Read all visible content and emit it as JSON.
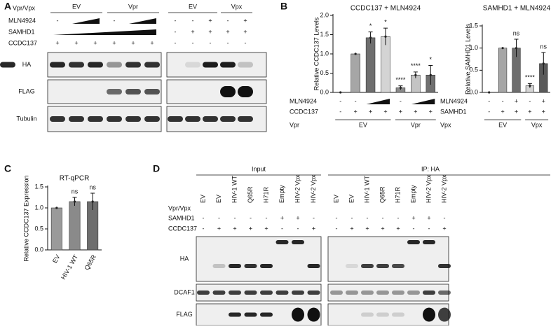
{
  "panel_labels": [
    "A",
    "B",
    "C",
    "D"
  ],
  "panel_a": {
    "header": "Vpr/Vpx",
    "groups": [
      "EV",
      "Vpr",
      "EV",
      "Vpx"
    ],
    "rows": [
      {
        "name": "MLN4924",
        "values": [
          "-",
          null,
          null,
          "-",
          null,
          null,
          "-",
          "-",
          "+",
          "-",
          "+"
        ]
      },
      {
        "name": "SAMHD1",
        "values": [
          null,
          null,
          null,
          null,
          null,
          null,
          "-",
          "+",
          "+",
          "+",
          "+"
        ]
      },
      {
        "name": "CCDC137",
        "values": [
          "+",
          "+",
          "+",
          "+",
          "+",
          "+",
          "-",
          "-",
          "-",
          "-",
          "-"
        ]
      }
    ],
    "blots": [
      "HA",
      "FLAG",
      "Tubulin"
    ]
  },
  "chart_data": [
    {
      "type": "bar",
      "title": "CCDC137 + MLN4924",
      "ylabel": "Relative CCDC137 Levels",
      "categories": [
        null,
        null,
        null,
        null,
        null,
        null,
        null
      ],
      "values": [
        0,
        1.0,
        1.42,
        1.45,
        0.12,
        0.45,
        0.45
      ],
      "errors": [
        0,
        0,
        0.15,
        0.22,
        0.05,
        0.08,
        0.25
      ],
      "annotations": [
        null,
        null,
        "*",
        "*",
        "****",
        "****",
        "*"
      ],
      "colors": [
        "#9a9a9a",
        "#a6a6a6",
        "#6e6e6e",
        "#d4d4d4",
        "#8a8a8a",
        "#c4c4c4",
        "#707070"
      ],
      "ylim": [
        0,
        2.0
      ],
      "yticks": [
        {
          "value": 0,
          "label": "0.0"
        },
        0.5,
        {
          "value": 1,
          "label": "1.0"
        },
        1.5,
        {
          "value": 2,
          "label": "2.0"
        }
      ],
      "conditions": [
        {
          "name": "MLN4924",
          "values": [
            "-",
            "-",
            null,
            null,
            "-",
            null,
            null
          ]
        },
        {
          "name": "CCDC137",
          "values": [
            "-",
            "+",
            "+",
            "+",
            "+",
            "+",
            "+"
          ]
        }
      ],
      "group_row": {
        "name": "Vpr",
        "labels": [
          "EV",
          "Vpr"
        ]
      }
    },
    {
      "type": "bar",
      "title": "SAMHD1 + MLN4924",
      "ylabel": "Relative SAMHD1 Levels",
      "categories": [
        null,
        null,
        null,
        null,
        null
      ],
      "values": [
        0,
        1.0,
        1.0,
        0.15,
        0.65
      ],
      "errors": [
        0,
        0,
        0.2,
        0.05,
        0.25
      ],
      "annotations": [
        null,
        null,
        "ns",
        "****",
        "ns"
      ],
      "colors": [
        "#9a9a9a",
        "#a6a6a6",
        "#6e6e6e",
        "#d4d4d4",
        "#5a5a5a"
      ],
      "ylim": [
        0,
        1.5
      ],
      "yticks": [
        {
          "value": 0,
          "label": "0.0"
        },
        0.5,
        {
          "value": 1,
          "label": "1.0"
        },
        1.5
      ],
      "conditions": [
        {
          "name": "MLN4924",
          "values": [
            "-",
            "-",
            "+",
            "-",
            "+"
          ]
        },
        {
          "name": "SAMHD1",
          "values": [
            "-",
            "+",
            "+",
            "+",
            "+"
          ]
        }
      ],
      "group_row": {
        "name": "Vpx",
        "labels": [
          "EV",
          "Vpx"
        ]
      }
    },
    {
      "type": "bar",
      "title": "RT-qPCR",
      "ylabel": "Relative CCDC137 Expression",
      "categories": [
        "EV",
        "HIV-1 WT",
        "Q65R"
      ],
      "values": [
        1.0,
        1.15,
        1.15
      ],
      "errors": [
        0,
        0.1,
        0.2
      ],
      "annotations": [
        null,
        "ns",
        "ns"
      ],
      "colors": [
        "#9a9a9a",
        "#8a8a8a",
        "#6e6e6e"
      ],
      "ylim": [
        0,
        1.5
      ],
      "yticks": [
        {
          "value": 0,
          "label": "0.0"
        },
        0.5,
        {
          "value": 1,
          "label": "1.0"
        },
        1.5
      ]
    }
  ],
  "panel_d": {
    "sections": [
      "Input",
      "IP: HA"
    ],
    "lanes": [
      "EV",
      "EV",
      "HIV-1 WT",
      "Q65R",
      "H71R",
      "Empty",
      "HIV-2 Vpx",
      "HIV-2 Vpx"
    ],
    "lane_header": "Vpr/Vpx",
    "rows": [
      {
        "name": "SAMHD1",
        "values": [
          "-",
          "-",
          "-",
          "-",
          "-",
          "+",
          "+",
          "-"
        ]
      },
      {
        "name": "CCDC137",
        "values": [
          "-",
          "+",
          "+",
          "+",
          "+",
          "-",
          "-",
          "+"
        ]
      }
    ],
    "blots": [
      "HA",
      "DCAF1",
      "FLAG"
    ]
  }
}
